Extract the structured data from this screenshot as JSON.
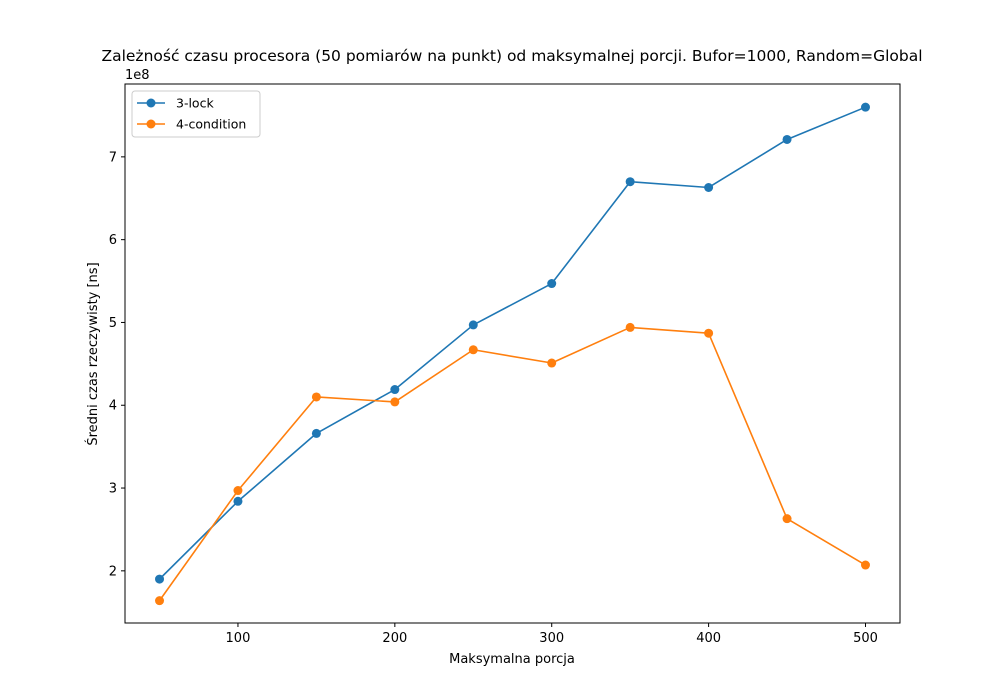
{
  "chart_data": {
    "type": "line",
    "title": "Zależność czasu procesora (50 pomiarów na punkt) od maksymalnej porcji. Bufor=1000, Random=Global",
    "xlabel": "Maksymalna porcja",
    "ylabel": "Średni czas rzeczywisty [ns]",
    "y_multiplier_label": "1e8",
    "x": [
      50,
      100,
      150,
      200,
      250,
      300,
      350,
      400,
      450,
      500
    ],
    "x_ticks": [
      100,
      200,
      300,
      400,
      500
    ],
    "x_tick_labels": [
      "100",
      "200",
      "300",
      "400",
      "500"
    ],
    "y_ticks": [
      2,
      3,
      4,
      5,
      6,
      7
    ],
    "y_tick_labels": [
      "2",
      "3",
      "4",
      "5",
      "6",
      "7"
    ],
    "xlim": [
      28,
      522
    ],
    "ylim": [
      1.37,
      7.88
    ],
    "legend_position": "upper-left",
    "grid": false,
    "series": [
      {
        "name": "3-lock",
        "color": "#1f77b4",
        "values": [
          1.9,
          2.84,
          3.66,
          4.19,
          4.97,
          5.47,
          6.7,
          6.63,
          7.21,
          7.6
        ]
      },
      {
        "name": "4-condition",
        "color": "#ff7f0e",
        "values": [
          1.64,
          2.97,
          4.1,
          4.04,
          4.67,
          4.51,
          4.94,
          4.87,
          2.63,
          2.07
        ]
      }
    ]
  }
}
